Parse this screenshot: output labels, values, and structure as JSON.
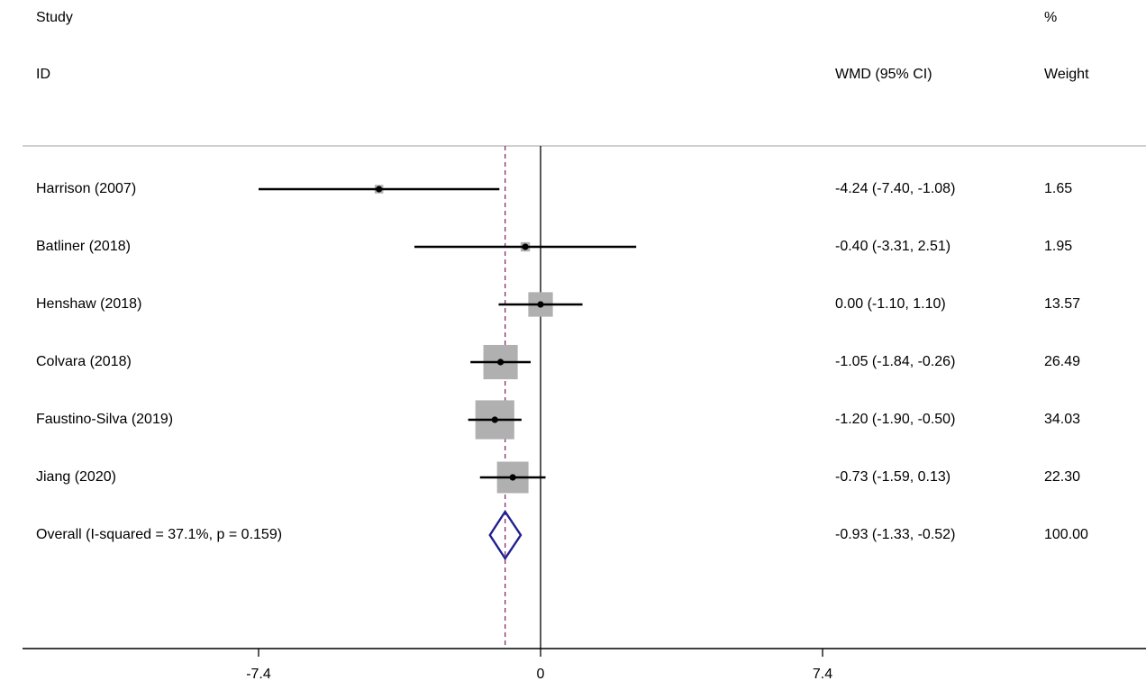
{
  "headers": {
    "study_line1": "Study",
    "study_line2": "ID",
    "effect_label": "WMD (95% CI)",
    "weight_line1": "%",
    "weight_line2": "Weight"
  },
  "colors": {
    "box": "#b0b0b0",
    "line": "#000000",
    "diamond": "#1f1f8f",
    "overall_line": "#8b2c6a",
    "header_rule": "#b3b3b3"
  },
  "chart_data": {
    "type": "forest",
    "xlim": [
      -13.55,
      15.12
    ],
    "x_ticks": [
      -7.4,
      0,
      7.4
    ],
    "x_tick_labels": [
      "-7.4",
      "0",
      "7.4"
    ],
    "null_value": 0,
    "studies": [
      {
        "label": "Harrison (2007)",
        "est": -4.24,
        "lo": -7.4,
        "hi": -1.08,
        "ci_text": "-4.24 (-7.40, -1.08)",
        "weight": 1.65,
        "weight_text": "1.65"
      },
      {
        "label": "Batliner (2018)",
        "est": -0.4,
        "lo": -3.31,
        "hi": 2.51,
        "ci_text": "-0.40 (-3.31, 2.51)",
        "weight": 1.95,
        "weight_text": "1.95"
      },
      {
        "label": "Henshaw (2018)",
        "est": 0.0,
        "lo": -1.1,
        "hi": 1.1,
        "ci_text": "0.00 (-1.10, 1.10)",
        "weight": 13.57,
        "weight_text": "13.57"
      },
      {
        "label": "Colvara (2018)",
        "est": -1.05,
        "lo": -1.84,
        "hi": -0.26,
        "ci_text": "-1.05 (-1.84, -0.26)",
        "weight": 26.49,
        "weight_text": "26.49"
      },
      {
        "label": "Faustino-Silva (2019)",
        "est": -1.2,
        "lo": -1.9,
        "hi": -0.5,
        "ci_text": "-1.20 (-1.90, -0.50)",
        "weight": 34.03,
        "weight_text": "34.03"
      },
      {
        "label": "Jiang (2020)",
        "est": -0.73,
        "lo": -1.59,
        "hi": 0.13,
        "ci_text": "-0.73 (-1.59, 0.13)",
        "weight": 22.3,
        "weight_text": "22.30"
      }
    ],
    "overall": {
      "label": "Overall  (I-squared = 37.1%, p = 0.159)",
      "est": -0.93,
      "lo": -1.33,
      "hi": -0.52,
      "ci_text": "-0.93 (-1.33, -0.52)",
      "weight_text": "100.00"
    }
  }
}
